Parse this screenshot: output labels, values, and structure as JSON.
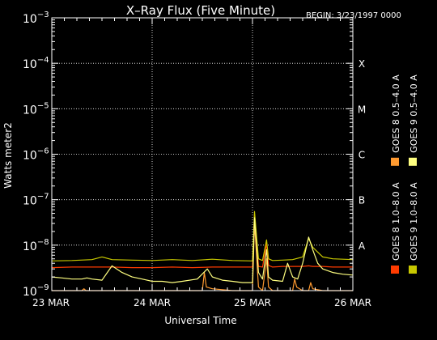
{
  "chart_data": {
    "type": "line",
    "title": "X–Ray Flux (Five Minute)",
    "begin_label": "BEGIN: 3/23/1997 0000",
    "xlabel": "Universal Time",
    "ylabel": "Watts meter2",
    "y_scale": "log",
    "ylim": [
      1e-09,
      0.001
    ],
    "xlim_days": [
      23,
      26
    ],
    "x_ticks": [
      {
        "value": 23,
        "label": "23 MAR"
      },
      {
        "value": 24,
        "label": "24 MAR"
      },
      {
        "value": 25,
        "label": "25 MAR"
      },
      {
        "value": 26,
        "label": "26 MAR"
      }
    ],
    "y_ticks": [
      {
        "exp": -3,
        "label": "10",
        "sup": "−3"
      },
      {
        "exp": -4,
        "label": "10",
        "sup": "−4"
      },
      {
        "exp": -5,
        "label": "10",
        "sup": "−5"
      },
      {
        "exp": -6,
        "label": "10",
        "sup": "−6"
      },
      {
        "exp": -7,
        "label": "10",
        "sup": "−7"
      },
      {
        "exp": -8,
        "label": "10",
        "sup": "−8"
      },
      {
        "exp": -9,
        "label": "10",
        "sup": "−9"
      }
    ],
    "flare_classes": [
      {
        "label": "X",
        "exp": -4
      },
      {
        "label": "M",
        "exp": -5
      },
      {
        "label": "C",
        "exp": -6
      },
      {
        "label": "B",
        "exp": -7
      },
      {
        "label": "A",
        "exp": -8
      }
    ],
    "grid": true,
    "legend_position": "right, rotated",
    "colors": {
      "goes8_long": "#ff3b00",
      "goes8_short": "#ff9a30",
      "goes9_long": "#c8c800",
      "goes9_short": "#ffff80"
    },
    "series": [
      {
        "name": "GOES 8 1.0–8.0 A",
        "color": "#ff3b00",
        "x": [
          23.0,
          23.2,
          23.4,
          23.6,
          23.8,
          24.0,
          24.2,
          24.4,
          24.6,
          24.8,
          25.0,
          25.02,
          25.04,
          25.06,
          25.1,
          25.14,
          25.16,
          25.2,
          25.3,
          25.4,
          25.5,
          25.56,
          25.6,
          25.7,
          25.8,
          25.9,
          26.0
        ],
        "y": [
          3.2e-09,
          3.3e-09,
          3.3e-09,
          3.3e-09,
          3.2e-09,
          3.2e-09,
          3.3e-09,
          3.2e-09,
          3.3e-09,
          3.3e-09,
          3.3e-09,
          4.8e-08,
          1.4e-08,
          3.4e-09,
          3.3e-09,
          1.1e-08,
          3.6e-09,
          3.3e-09,
          3.4e-09,
          3.4e-09,
          3.4e-09,
          3.5e-09,
          3.4e-09,
          3.4e-09,
          3.3e-09,
          3.3e-09,
          3.3e-09
        ]
      },
      {
        "name": "GOES 8 0.5–4.0 A",
        "color": "#ff9a30",
        "x": [
          23.0,
          23.05,
          23.1,
          23.3,
          23.32,
          23.34,
          23.4,
          23.6,
          23.8,
          24.0,
          24.2,
          24.4,
          24.5,
          24.52,
          24.54,
          24.6,
          24.8,
          25.0,
          25.02,
          25.04,
          25.06,
          25.1,
          25.14,
          25.16,
          25.2,
          25.3,
          25.4,
          25.42,
          25.44,
          25.5,
          25.56,
          25.58,
          25.6,
          25.7,
          25.8,
          25.9,
          26.0
        ],
        "y": [
          1e-09,
          1e-09,
          1e-09,
          1e-09,
          1.1e-09,
          1e-09,
          1e-09,
          1e-09,
          1e-09,
          1e-09,
          1e-09,
          1e-09,
          1e-09,
          2.5e-09,
          1.2e-09,
          1.1e-09,
          1e-09,
          1e-09,
          3e-08,
          6e-09,
          1.2e-09,
          1e-09,
          5e-09,
          1.2e-09,
          1e-09,
          1e-09,
          1e-09,
          1.8e-09,
          1.2e-09,
          1e-09,
          1e-09,
          1.5e-09,
          1.1e-09,
          1e-09,
          1e-09,
          1e-09,
          1e-09
        ]
      },
      {
        "name": "GOES 9 1.0–8.0 A",
        "color": "#c8c800",
        "x": [
          23.0,
          23.2,
          23.4,
          23.5,
          23.6,
          23.8,
          24.0,
          24.2,
          24.4,
          24.6,
          24.8,
          25.0,
          25.02,
          25.04,
          25.06,
          25.1,
          25.14,
          25.16,
          25.2,
          25.3,
          25.4,
          25.5,
          25.56,
          25.6,
          25.7,
          25.8,
          25.9,
          26.0
        ],
        "y": [
          4.5e-09,
          4.6e-09,
          4.8e-09,
          5.5e-09,
          4.8e-09,
          4.7e-09,
          4.6e-09,
          4.8e-09,
          4.6e-09,
          4.9e-09,
          4.6e-09,
          4.5e-09,
          5.5e-08,
          1.6e-08,
          5e-09,
          4.6e-09,
          1.3e-08,
          5e-09,
          4.6e-09,
          4.7e-09,
          4.8e-09,
          5.5e-09,
          1.4e-08,
          9e-09,
          5.5e-09,
          5e-09,
          4.9e-09,
          4.8e-09
        ]
      },
      {
        "name": "GOES 9 0.5–4.0 A",
        "color": "#ffff80",
        "x": [
          23.0,
          23.1,
          23.2,
          23.3,
          23.35,
          23.4,
          23.5,
          23.6,
          23.7,
          23.8,
          23.9,
          24.0,
          24.1,
          24.2,
          24.3,
          24.45,
          24.55,
          24.6,
          24.7,
          24.8,
          24.9,
          25.0,
          25.02,
          25.04,
          25.06,
          25.1,
          25.14,
          25.16,
          25.2,
          25.3,
          25.35,
          25.4,
          25.45,
          25.5,
          25.56,
          25.6,
          25.65,
          25.7,
          25.8,
          25.9,
          26.0
        ],
        "y": [
          2e-09,
          1.9e-09,
          1.8e-09,
          1.8e-09,
          1.9e-09,
          1.8e-09,
          1.7e-09,
          3.5e-09,
          2.5e-09,
          2e-09,
          1.8e-09,
          1.6e-09,
          1.6e-09,
          1.5e-09,
          1.6e-09,
          1.8e-09,
          3e-09,
          2e-09,
          1.7e-09,
          1.6e-09,
          1.5e-09,
          1.5e-09,
          4e-08,
          1e-08,
          2.5e-09,
          1.8e-09,
          8e-09,
          2e-09,
          1.7e-09,
          1.6e-09,
          4e-09,
          2e-09,
          1.8e-09,
          4e-09,
          1.5e-08,
          8e-09,
          4e-09,
          3e-09,
          2.5e-09,
          2.3e-09,
          2.2e-09
        ]
      }
    ]
  }
}
